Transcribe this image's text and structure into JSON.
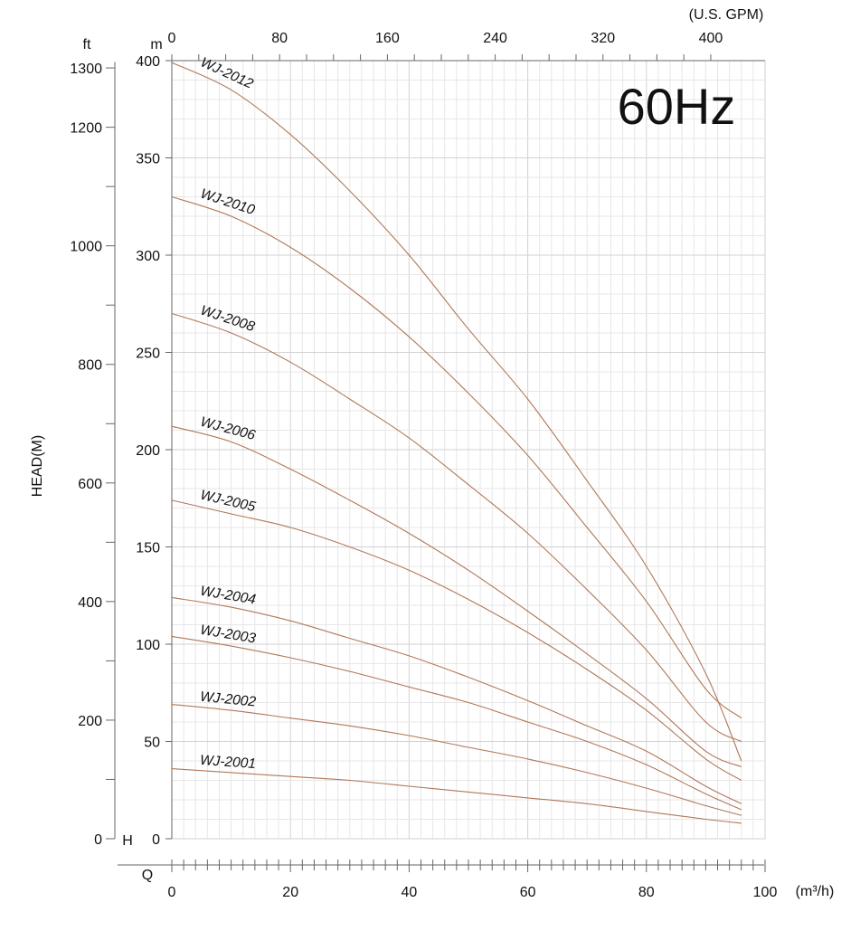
{
  "chart_data": {
    "type": "line",
    "title": "60Hz",
    "ylabel": "HEAD(M)",
    "head_axis_m": {
      "label": "m",
      "ylim": [
        0,
        400
      ],
      "ticks": [
        0,
        50,
        100,
        150,
        200,
        250,
        300,
        350,
        400
      ]
    },
    "head_axis_ft": {
      "label": "ft",
      "ticks": [
        0,
        200,
        400,
        600,
        800,
        1000,
        1200,
        1300
      ]
    },
    "flow_axis_m3h": {
      "label": "(m³/h)",
      "xlim": [
        0,
        100
      ],
      "ticks": [
        0,
        20,
        40,
        60,
        80,
        100
      ]
    },
    "flow_axis_gpm": {
      "label": "(U.S. GPM)",
      "ticks": [
        0,
        80,
        160,
        240,
        320,
        400
      ]
    },
    "h_marker": "H",
    "q_marker": "Q",
    "grid": true,
    "x": [
      0,
      10,
      20,
      30,
      40,
      50,
      60,
      70,
      80,
      90,
      96
    ],
    "series": [
      {
        "name": "WJ-2012",
        "values": [
          399,
          385,
          362,
          333,
          300,
          262,
          226,
          184,
          140,
          85,
          40
        ]
      },
      {
        "name": "WJ-2010",
        "values": [
          330,
          320,
          304,
          283,
          258,
          229,
          197,
          160,
          122,
          77,
          62
        ]
      },
      {
        "name": "WJ-2008",
        "values": [
          270,
          260,
          245,
          226,
          206,
          182,
          157,
          128,
          97,
          60,
          50
        ]
      },
      {
        "name": "WJ-2006",
        "values": [
          212,
          204,
          190,
          174,
          157,
          138,
          117,
          95,
          72,
          45,
          37
        ]
      },
      {
        "name": "WJ-2005",
        "values": [
          174,
          167,
          160,
          150,
          138,
          123,
          106,
          87,
          66,
          41,
          30
        ]
      },
      {
        "name": "WJ-2004",
        "values": [
          124,
          119,
          112,
          103,
          94,
          83,
          71,
          58,
          45,
          27,
          18
        ]
      },
      {
        "name": "WJ-2003",
        "values": [
          104,
          99,
          93,
          86,
          78,
          70,
          60,
          50,
          38,
          23,
          15
        ]
      },
      {
        "name": "WJ-2002",
        "values": [
          69,
          66,
          62,
          58,
          53,
          47,
          41,
          34,
          26,
          17,
          12
        ]
      },
      {
        "name": "WJ-2001",
        "values": [
          36,
          34,
          32,
          30,
          27,
          24,
          21,
          18,
          14,
          10,
          8
        ]
      }
    ],
    "line_color": "#b07858"
  }
}
